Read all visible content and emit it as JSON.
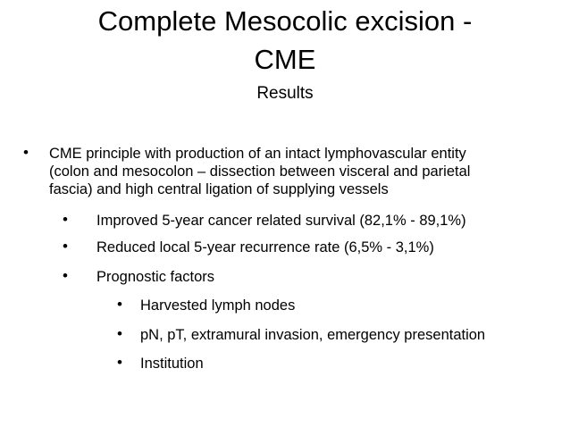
{
  "slide": {
    "title_lines": [
      "Complete Mesocolic excision -",
      "CME"
    ],
    "subtitle": "Results",
    "bullets": [
      {
        "text": "CME principle with production of an intact lymphovascular entity (colon and mesocolon – dissection between visceral and parietal fascia) and high central ligation of supplying vessels",
        "children": [
          {
            "text": "Improved 5-year cancer related survival (82,1% - 89,1%)"
          },
          {
            "text": "Reduced local 5-year recurrence rate (6,5% - 3,1%)"
          },
          {
            "text": "Prognostic factors",
            "children": [
              {
                "text": "Harvested lymph nodes"
              },
              {
                "text": "pN, pT, extramural invasion, emergency presentation"
              },
              {
                "text": "Institution"
              }
            ]
          }
        ]
      }
    ]
  }
}
